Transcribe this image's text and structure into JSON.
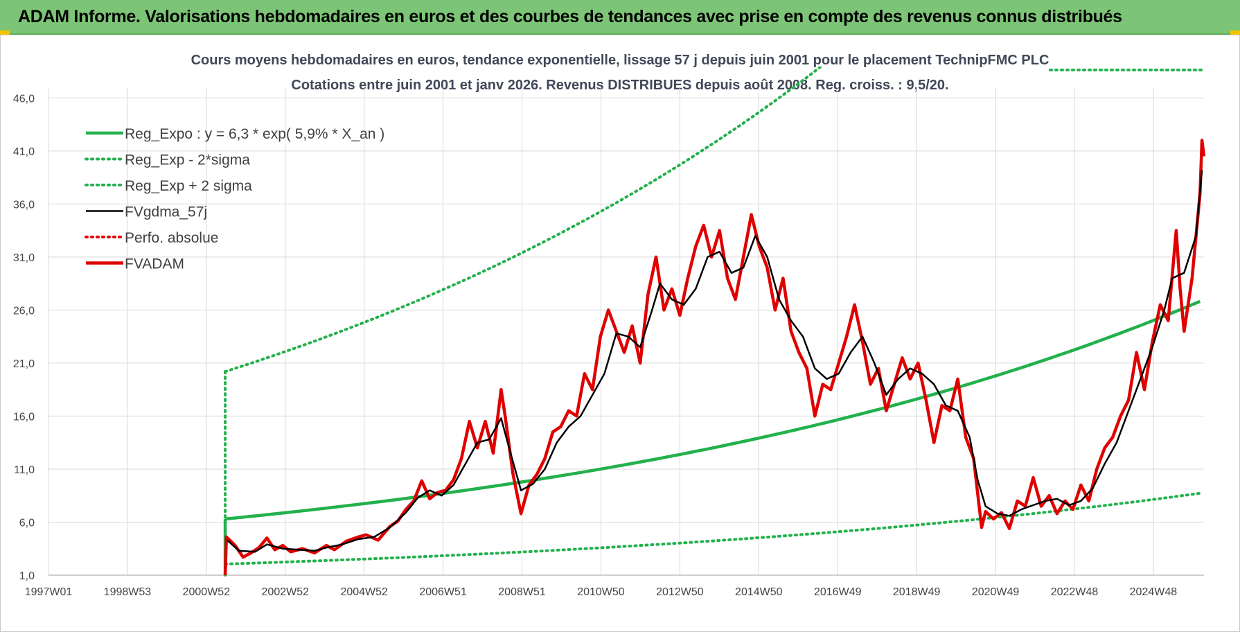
{
  "banner": {
    "title": "ADAM Informe. Valorisations hebdomadaires en euros et des courbes de tendances avec prise en compte des revenus connus distribués"
  },
  "colors": {
    "banner_bg": "#7cc576",
    "reg_line": "#22b14c",
    "perf_line": "#e00000",
    "smooth_line": "#000000",
    "grid": "#d9d9d9"
  },
  "chart_data": {
    "type": "line",
    "title": "Cours moyens hebdomadaires en euros, tendance exponentielle, lissage 57 j depuis juin 2001 pour le placement TechnipFMC PLC",
    "subtitle": "Cotations entre juin 2001 et janv 2026.  Revenus DISTRIBUES depuis août 2008.  Reg. croiss. : 9,5/20.",
    "ylim": [
      1,
      47
    ],
    "y_ticks": [
      "1,0",
      "6,0",
      "11,0",
      "16,0",
      "21,0",
      "26,0",
      "31,0",
      "36,0",
      "41,0",
      "46,0"
    ],
    "x_ticks": [
      "1997W01",
      "1998W53",
      "2000W52",
      "2002W52",
      "2004W52",
      "2006W51",
      "2008W51",
      "2010W50",
      "2012W50",
      "2014W50",
      "2016W49",
      "2018W49",
      "2020W49",
      "2022W48",
      "2024W48"
    ],
    "x_range_years": [
      1997.0,
      2026.1
    ],
    "grid": true,
    "legend_position": "top-left",
    "series": [
      {
        "name": "Reg_Expo : y = 6,3 * exp( 5,9% *  X_an )",
        "style": "solid-thick",
        "color": "#22b14c",
        "points": [
          [
            2001.45,
            6.3
          ],
          [
            2026.0,
            27.0
          ]
        ],
        "growth_rate": 0.059,
        "start_value": 6.3
      },
      {
        "name": "Reg_Exp - 2*sigma",
        "style": "dotted",
        "color": "#22b14c",
        "points": [
          [
            2001.45,
            2.05
          ],
          [
            2026.0,
            8.6
          ]
        ],
        "growth_rate": 0.059,
        "start_value": 2.05
      },
      {
        "name": "Reg_Exp + 2 sigma",
        "style": "dotted",
        "color": "#22b14c",
        "points": [
          [
            2001.45,
            20.2
          ],
          [
            2026.0,
            87.0
          ]
        ],
        "growth_rate": 0.059,
        "start_value": 20.2
      },
      {
        "name": "FVgdma_57j",
        "style": "solid",
        "color": "#000000",
        "points": [
          [
            2001.5,
            4.3
          ],
          [
            2001.8,
            3.3
          ],
          [
            2002.2,
            3.2
          ],
          [
            2002.5,
            3.9
          ],
          [
            2002.9,
            3.5
          ],
          [
            2003.3,
            3.4
          ],
          [
            2003.7,
            3.3
          ],
          [
            2004.0,
            3.6
          ],
          [
            2004.4,
            3.9
          ],
          [
            2004.8,
            4.4
          ],
          [
            2005.2,
            4.6
          ],
          [
            2005.6,
            5.5
          ],
          [
            2006.0,
            6.9
          ],
          [
            2006.3,
            8.3
          ],
          [
            2006.6,
            9.0
          ],
          [
            2006.9,
            8.5
          ],
          [
            2007.2,
            9.5
          ],
          [
            2007.5,
            11.5
          ],
          [
            2007.8,
            13.5
          ],
          [
            2008.1,
            13.8
          ],
          [
            2008.4,
            15.8
          ],
          [
            2008.6,
            13.0
          ],
          [
            2008.9,
            9.0
          ],
          [
            2009.2,
            9.6
          ],
          [
            2009.5,
            11.0
          ],
          [
            2009.8,
            13.5
          ],
          [
            2010.1,
            15.0
          ],
          [
            2010.4,
            16.0
          ],
          [
            2010.7,
            18.0
          ],
          [
            2011.0,
            20.0
          ],
          [
            2011.3,
            23.8
          ],
          [
            2011.6,
            23.5
          ],
          [
            2011.9,
            22.5
          ],
          [
            2012.2,
            26.0
          ],
          [
            2012.4,
            28.5
          ],
          [
            2012.7,
            27.0
          ],
          [
            2013.0,
            26.5
          ],
          [
            2013.3,
            28.0
          ],
          [
            2013.6,
            31.0
          ],
          [
            2013.9,
            31.5
          ],
          [
            2014.2,
            29.5
          ],
          [
            2014.5,
            30.0
          ],
          [
            2014.8,
            33.0
          ],
          [
            2015.1,
            31.0
          ],
          [
            2015.4,
            27.0
          ],
          [
            2015.7,
            25.0
          ],
          [
            2016.0,
            23.5
          ],
          [
            2016.3,
            20.5
          ],
          [
            2016.6,
            19.5
          ],
          [
            2016.9,
            20.0
          ],
          [
            2017.2,
            22.0
          ],
          [
            2017.5,
            23.5
          ],
          [
            2017.8,
            21.0
          ],
          [
            2018.1,
            18.0
          ],
          [
            2018.4,
            19.5
          ],
          [
            2018.7,
            20.5
          ],
          [
            2019.0,
            20.0
          ],
          [
            2019.3,
            19.0
          ],
          [
            2019.6,
            17.0
          ],
          [
            2019.9,
            16.5
          ],
          [
            2020.2,
            14.0
          ],
          [
            2020.4,
            10.0
          ],
          [
            2020.6,
            7.5
          ],
          [
            2020.9,
            6.8
          ],
          [
            2021.2,
            6.6
          ],
          [
            2021.5,
            7.2
          ],
          [
            2021.8,
            7.6
          ],
          [
            2022.1,
            8.0
          ],
          [
            2022.4,
            8.2
          ],
          [
            2022.7,
            7.6
          ],
          [
            2023.0,
            8.0
          ],
          [
            2023.3,
            9.2
          ],
          [
            2023.6,
            11.5
          ],
          [
            2023.9,
            13.5
          ],
          [
            2024.2,
            16.5
          ],
          [
            2024.5,
            19.5
          ],
          [
            2024.8,
            22.5
          ],
          [
            2025.1,
            26.0
          ],
          [
            2025.3,
            29.0
          ],
          [
            2025.6,
            29.5
          ],
          [
            2025.9,
            33.0
          ],
          [
            2026.05,
            39.2
          ]
        ]
      },
      {
        "name": "Perfo. absolue",
        "style": "dotted",
        "color": "#e00000",
        "points": []
      },
      {
        "name": "FVADAM",
        "style": "solid-thick",
        "color": "#e00000",
        "points": [
          [
            2001.45,
            1.0
          ],
          [
            2001.48,
            4.6
          ],
          [
            2001.7,
            3.8
          ],
          [
            2001.9,
            2.7
          ],
          [
            2002.1,
            3.1
          ],
          [
            2002.3,
            3.6
          ],
          [
            2002.5,
            4.5
          ],
          [
            2002.7,
            3.4
          ],
          [
            2002.9,
            3.8
          ],
          [
            2003.1,
            3.2
          ],
          [
            2003.4,
            3.5
          ],
          [
            2003.7,
            3.1
          ],
          [
            2004.0,
            3.8
          ],
          [
            2004.2,
            3.4
          ],
          [
            2004.5,
            4.2
          ],
          [
            2004.8,
            4.6
          ],
          [
            2005.0,
            4.8
          ],
          [
            2005.3,
            4.3
          ],
          [
            2005.6,
            5.6
          ],
          [
            2005.8,
            6.1
          ],
          [
            2006.0,
            7.2
          ],
          [
            2006.2,
            8.0
          ],
          [
            2006.4,
            9.9
          ],
          [
            2006.6,
            8.2
          ],
          [
            2006.8,
            8.8
          ],
          [
            2007.0,
            9.0
          ],
          [
            2007.2,
            10.0
          ],
          [
            2007.4,
            12.0
          ],
          [
            2007.6,
            15.5
          ],
          [
            2007.8,
            13.0
          ],
          [
            2008.0,
            15.5
          ],
          [
            2008.2,
            12.5
          ],
          [
            2008.4,
            18.5
          ],
          [
            2008.5,
            16.0
          ],
          [
            2008.7,
            10.5
          ],
          [
            2008.9,
            6.8
          ],
          [
            2009.1,
            9.5
          ],
          [
            2009.3,
            10.5
          ],
          [
            2009.5,
            12.0
          ],
          [
            2009.7,
            14.5
          ],
          [
            2009.9,
            15.0
          ],
          [
            2010.1,
            16.5
          ],
          [
            2010.3,
            16.0
          ],
          [
            2010.5,
            20.0
          ],
          [
            2010.7,
            18.5
          ],
          [
            2010.9,
            23.5
          ],
          [
            2011.1,
            26.0
          ],
          [
            2011.3,
            24.0
          ],
          [
            2011.5,
            22.0
          ],
          [
            2011.7,
            24.5
          ],
          [
            2011.9,
            21.0
          ],
          [
            2012.1,
            27.5
          ],
          [
            2012.3,
            31.0
          ],
          [
            2012.5,
            26.0
          ],
          [
            2012.7,
            28.0
          ],
          [
            2012.9,
            25.5
          ],
          [
            2013.1,
            29.0
          ],
          [
            2013.3,
            32.0
          ],
          [
            2013.5,
            34.0
          ],
          [
            2013.7,
            31.0
          ],
          [
            2013.9,
            33.5
          ],
          [
            2014.1,
            29.0
          ],
          [
            2014.3,
            27.0
          ],
          [
            2014.5,
            31.0
          ],
          [
            2014.7,
            35.0
          ],
          [
            2014.9,
            32.0
          ],
          [
            2015.1,
            30.0
          ],
          [
            2015.3,
            26.0
          ],
          [
            2015.5,
            29.0
          ],
          [
            2015.7,
            24.0
          ],
          [
            2015.9,
            22.0
          ],
          [
            2016.1,
            20.5
          ],
          [
            2016.3,
            16.0
          ],
          [
            2016.5,
            19.0
          ],
          [
            2016.7,
            18.5
          ],
          [
            2016.9,
            21.0
          ],
          [
            2017.1,
            23.5
          ],
          [
            2017.3,
            26.5
          ],
          [
            2017.5,
            23.0
          ],
          [
            2017.7,
            19.0
          ],
          [
            2017.9,
            20.5
          ],
          [
            2018.1,
            16.5
          ],
          [
            2018.3,
            19.0
          ],
          [
            2018.5,
            21.5
          ],
          [
            2018.7,
            19.5
          ],
          [
            2018.9,
            21.0
          ],
          [
            2019.1,
            17.5
          ],
          [
            2019.3,
            13.5
          ],
          [
            2019.5,
            17.0
          ],
          [
            2019.7,
            16.5
          ],
          [
            2019.9,
            19.5
          ],
          [
            2020.1,
            14.0
          ],
          [
            2020.3,
            12.0
          ],
          [
            2020.5,
            5.5
          ],
          [
            2020.6,
            7.0
          ],
          [
            2020.8,
            6.3
          ],
          [
            2021.0,
            6.9
          ],
          [
            2021.2,
            5.4
          ],
          [
            2021.4,
            8.0
          ],
          [
            2021.6,
            7.5
          ],
          [
            2021.8,
            10.2
          ],
          [
            2022.0,
            7.5
          ],
          [
            2022.2,
            8.5
          ],
          [
            2022.4,
            6.8
          ],
          [
            2022.6,
            8.0
          ],
          [
            2022.8,
            7.2
          ],
          [
            2023.0,
            9.5
          ],
          [
            2023.2,
            8.0
          ],
          [
            2023.4,
            11.0
          ],
          [
            2023.6,
            13.0
          ],
          [
            2023.8,
            14.0
          ],
          [
            2024.0,
            16.0
          ],
          [
            2024.2,
            17.5
          ],
          [
            2024.4,
            22.0
          ],
          [
            2024.6,
            18.5
          ],
          [
            2024.8,
            23.0
          ],
          [
            2025.0,
            26.5
          ],
          [
            2025.2,
            25.0
          ],
          [
            2025.4,
            33.5
          ],
          [
            2025.5,
            28.0
          ],
          [
            2025.6,
            24.0
          ],
          [
            2025.8,
            29.0
          ],
          [
            2026.0,
            37.0
          ],
          [
            2026.05,
            42.0
          ],
          [
            2026.1,
            40.5
          ]
        ]
      }
    ]
  }
}
